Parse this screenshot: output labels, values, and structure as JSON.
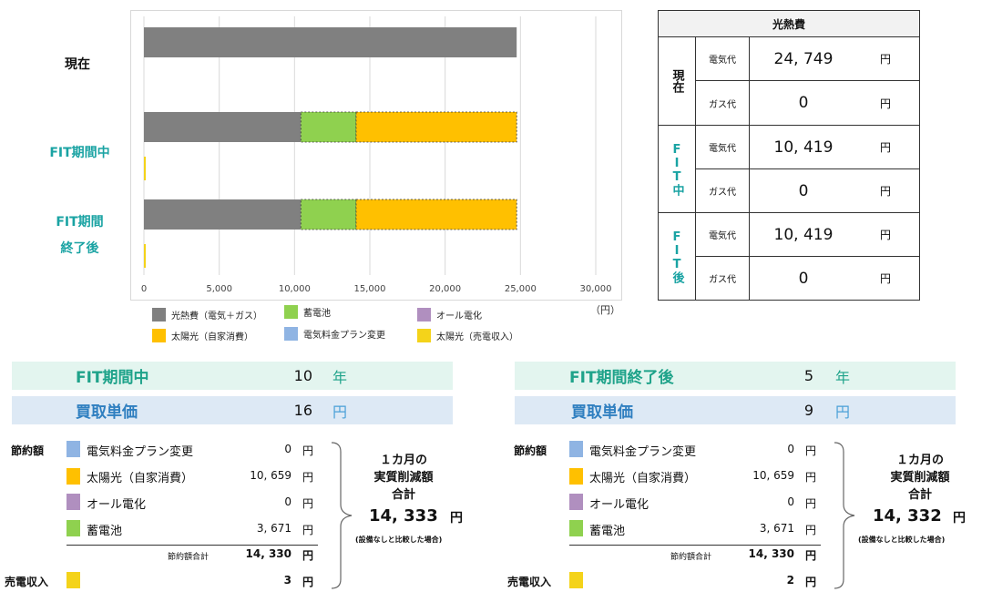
{
  "chart_data": {
    "type": "bar",
    "orientation": "horizontal",
    "stacked": true,
    "categories": [
      "現在",
      "FIT期間中",
      "FIT期間終了後"
    ],
    "category_labels": [
      [
        "現在"
      ],
      [
        "FIT期間中"
      ],
      [
        "FIT期間",
        "終了後"
      ]
    ],
    "x_ticks": [
      "0",
      "5,000",
      "10,000",
      "15,000",
      "20,000",
      "25,000",
      "30,000"
    ],
    "xlim": [
      0,
      30000
    ],
    "xunit": "（円）",
    "grid": true,
    "legend_placement": "bottom",
    "legend": [
      {
        "name": "光熱費（電気＋ガス）",
        "color": "#808080"
      },
      {
        "name": "蓄電池",
        "color": "#8fd14f"
      },
      {
        "name": "オール電化",
        "color": "#b08fbf"
      },
      {
        "name": "太陽光（自家消費）",
        "color": "#ffc000"
      },
      {
        "name": "電気料金プラン変更",
        "color": "#8fb4e3"
      },
      {
        "name": "太陽光（売電収入）",
        "color": "#f4d31a"
      }
    ],
    "series": [
      {
        "name": "光熱費（電気＋ガス）",
        "color": "#808080",
        "main": [
          24749,
          10419,
          10419
        ]
      },
      {
        "name": "蓄電池",
        "color": "#8fd14f",
        "main": [
          0,
          3671,
          3671
        ]
      },
      {
        "name": "太陽光（自家消費）",
        "color": "#ffc000",
        "main": [
          0,
          10659,
          10659
        ]
      },
      {
        "name": "太陽光（売電収入）",
        "color": "#f4d31a",
        "sub": [
          0,
          3,
          2
        ]
      }
    ]
  },
  "cost_table": {
    "title": "光熱費",
    "groups": [
      {
        "label": "現在",
        "rows": [
          {
            "kind": "電気代",
            "value": "24, 749",
            "unit": "円"
          },
          {
            "kind": "ガス代",
            "value": "0",
            "unit": "円"
          }
        ]
      },
      {
        "label": "FIT中",
        "rows": [
          {
            "kind": "電気代",
            "value": "10, 419",
            "unit": "円"
          },
          {
            "kind": "ガス代",
            "value": "0",
            "unit": "円"
          }
        ]
      },
      {
        "label": "FIT後",
        "rows": [
          {
            "kind": "電気代",
            "value": "10, 419",
            "unit": "円"
          },
          {
            "kind": "ガス代",
            "value": "0",
            "unit": "円"
          }
        ]
      }
    ]
  },
  "panels": [
    {
      "period_label": "FIT期間中",
      "period_value": "10",
      "period_unit": "年",
      "price_label": "買取単価",
      "price_value": "16",
      "price_unit": "円",
      "savings_label": "節約額",
      "items": [
        {
          "name": "電気料金プラン変更",
          "value": "0",
          "unit": "円",
          "color": "#8fb4e3"
        },
        {
          "name": "太陽光（自家消費）",
          "value": "10, 659",
          "unit": "円",
          "color": "#ffc000"
        },
        {
          "name": "オール電化",
          "value": "0",
          "unit": "円",
          "color": "#b08fbf"
        },
        {
          "name": "蓄電池",
          "value": "3, 671",
          "unit": "円",
          "color": "#8fd14f"
        }
      ],
      "total_label": "節約額合計",
      "total_value": "14, 330",
      "total_unit": "円",
      "sale_label": "売電収入",
      "sale_value": "3",
      "sale_unit": "円",
      "sale_color": "#f4d31a",
      "summary_title_1": "１カ月の",
      "summary_title_2": "実質削減額",
      "summary_title_3": "合計",
      "summary_value": "14, 333",
      "summary_unit": "円",
      "summary_note": "(設備なしと比較した場合)"
    },
    {
      "period_label": "FIT期間終了後",
      "period_value": "5",
      "period_unit": "年",
      "price_label": "買取単価",
      "price_value": "9",
      "price_unit": "円",
      "savings_label": "節約額",
      "items": [
        {
          "name": "電気料金プラン変更",
          "value": "0",
          "unit": "円",
          "color": "#8fb4e3"
        },
        {
          "name": "太陽光（自家消費）",
          "value": "10, 659",
          "unit": "円",
          "color": "#ffc000"
        },
        {
          "name": "オール電化",
          "value": "0",
          "unit": "円",
          "color": "#b08fbf"
        },
        {
          "name": "蓄電池",
          "value": "3, 671",
          "unit": "円",
          "color": "#8fd14f"
        }
      ],
      "total_label": "節約額合計",
      "total_value": "14, 330",
      "total_unit": "円",
      "sale_label": "売電収入",
      "sale_value": "2",
      "sale_unit": "円",
      "sale_color": "#f4d31a",
      "summary_title_1": "１カ月の",
      "summary_title_2": "実質削減額",
      "summary_title_3": "合計",
      "summary_value": "14, 332",
      "summary_unit": "円",
      "summary_note": "(設備なしと比較した場合)"
    }
  ]
}
